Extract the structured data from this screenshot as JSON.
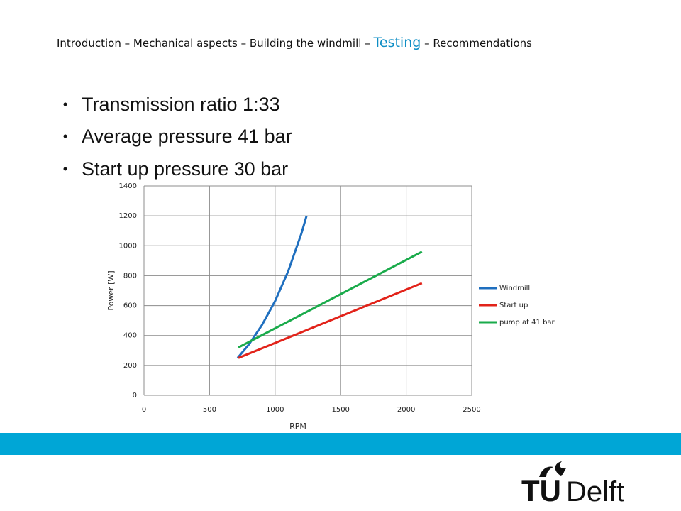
{
  "header": {
    "nav": [
      "Introduction",
      "Mechanical aspects",
      "Building the windmill",
      "Testing",
      "Recommendations"
    ],
    "separator": "–"
  },
  "bullets": [
    "Transmission ratio 1:33",
    "Average pressure 41 bar",
    "Start up pressure 30 bar"
  ],
  "chart_data": {
    "type": "line",
    "x_label": "RPM",
    "y_label": "Power [W]",
    "xlim": [
      0,
      2500
    ],
    "xticks": [
      0,
      500,
      1000,
      1500,
      2000,
      2500
    ],
    "ylim": [
      0,
      1400
    ],
    "yticks": [
      0,
      200,
      400,
      600,
      800,
      1000,
      1200,
      1400
    ],
    "grid": true,
    "legend": "right",
    "series": [
      {
        "name": "Windmill",
        "color": "#1f6fbf",
        "x": [
          714,
          800,
          900,
          1000,
          1100,
          1200,
          1240
        ],
        "values": [
          250,
          340,
          470,
          630,
          830,
          1080,
          1200
        ]
      },
      {
        "name": "Start up",
        "color": "#e2231a",
        "x": [
          720,
          2120
        ],
        "values": [
          250,
          750
        ]
      },
      {
        "name": "pump at 41 bar",
        "color": "#1aab4b",
        "x": [
          720,
          2120
        ],
        "values": [
          320,
          960
        ]
      }
    ]
  },
  "logo": {
    "left": "TU",
    "right": "Delft"
  }
}
